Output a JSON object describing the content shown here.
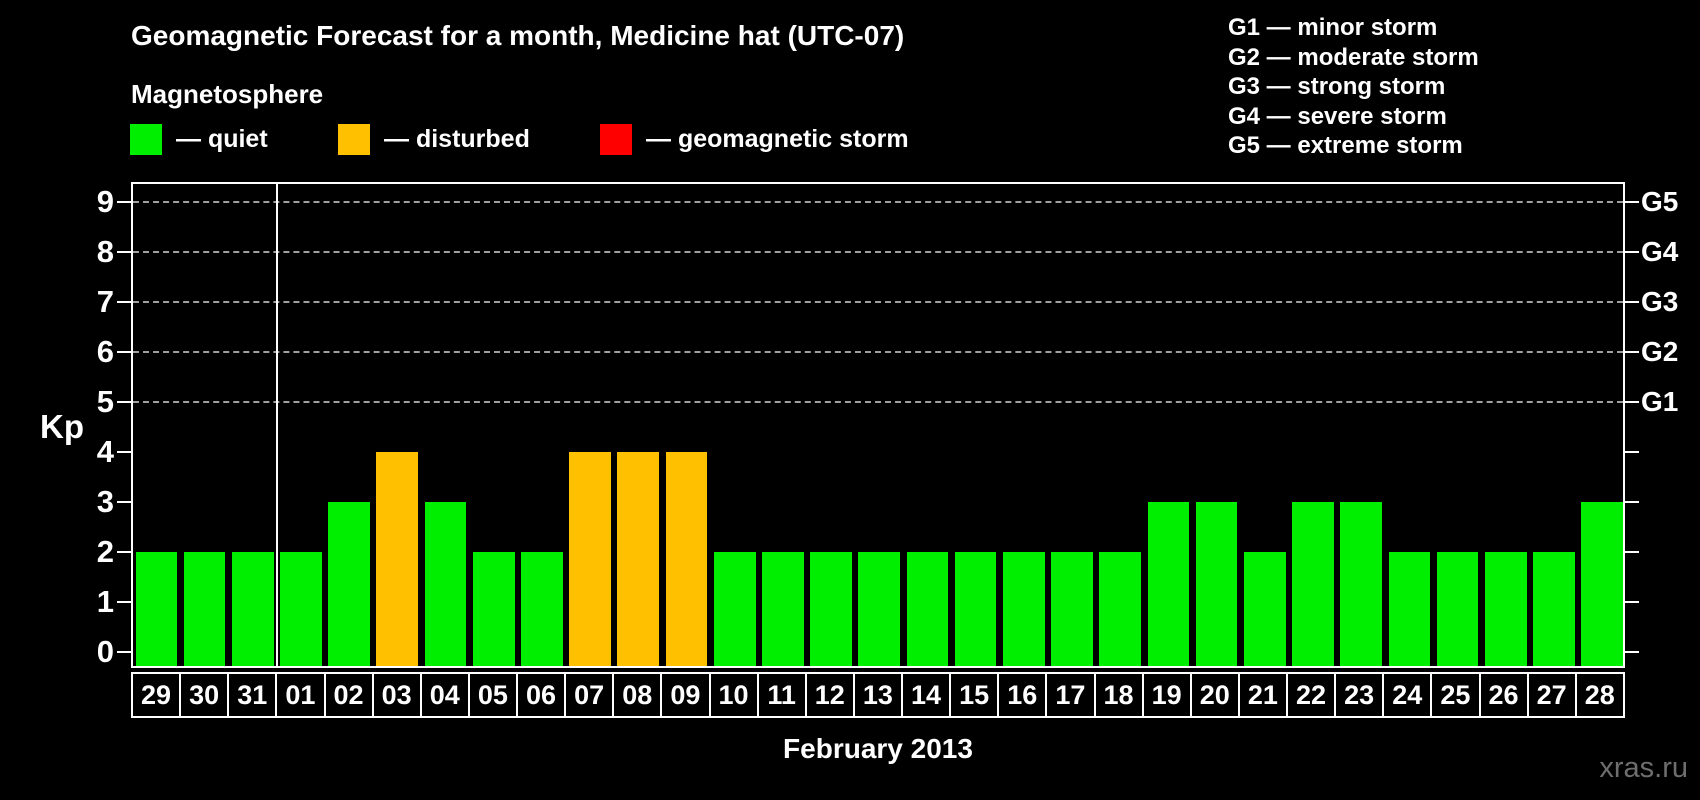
{
  "title": "Geomagnetic Forecast for a month, Medicine hat (UTC-07)",
  "subtitle": "Magnetosphere",
  "watermark": "xras.ru",
  "colors": {
    "background": "#000000",
    "quiet": "#00ee00",
    "disturbed": "#ffc000",
    "storm": "#ff0000",
    "grid": "#a0a0a0",
    "frame": "#ffffff",
    "watermark": "#6e6e6e"
  },
  "legend": {
    "items": [
      {
        "status": "quiet",
        "label": "— quiet"
      },
      {
        "status": "disturbed",
        "label": "— disturbed"
      },
      {
        "status": "storm",
        "label": "— geomagnetic storm"
      }
    ]
  },
  "storm_scale_legend": [
    "G1 — minor storm",
    "G2 — moderate storm",
    "G3 — strong storm",
    "G4 — severe storm",
    "G5 — extreme storm"
  ],
  "chart_data": {
    "type": "bar",
    "title": "Geomagnetic Forecast for a month, Medicine hat (UTC-07)",
    "xlabel": "February 2013",
    "ylabel": "Kp",
    "ylim": [
      0,
      9
    ],
    "yticks": [
      0,
      1,
      2,
      3,
      4,
      5,
      6,
      7,
      8,
      9
    ],
    "gridline_kp": [
      5,
      6,
      7,
      8,
      9
    ],
    "right_axis": [
      {
        "label": "G1",
        "kp": 5
      },
      {
        "label": "G2",
        "kp": 6
      },
      {
        "label": "G3",
        "kp": 7
      },
      {
        "label": "G4",
        "kp": 8
      },
      {
        "label": "G5",
        "kp": 9
      }
    ],
    "categories": [
      "29",
      "30",
      "31",
      "01",
      "02",
      "03",
      "04",
      "05",
      "06",
      "07",
      "08",
      "09",
      "10",
      "11",
      "12",
      "13",
      "14",
      "15",
      "16",
      "17",
      "18",
      "19",
      "20",
      "21",
      "22",
      "23",
      "24",
      "25",
      "26",
      "27",
      "28"
    ],
    "values": [
      2,
      2,
      2,
      2,
      3,
      4,
      3,
      2,
      2,
      4,
      4,
      4,
      2,
      2,
      2,
      2,
      2,
      2,
      2,
      2,
      2,
      3,
      3,
      2,
      3,
      3,
      2,
      2,
      2,
      2,
      3
    ],
    "statuses": [
      "quiet",
      "quiet",
      "quiet",
      "quiet",
      "quiet",
      "disturbed",
      "quiet",
      "quiet",
      "quiet",
      "disturbed",
      "disturbed",
      "disturbed",
      "quiet",
      "quiet",
      "quiet",
      "quiet",
      "quiet",
      "quiet",
      "quiet",
      "quiet",
      "quiet",
      "quiet",
      "quiet",
      "quiet",
      "quiet",
      "quiet",
      "quiet",
      "quiet",
      "quiet",
      "quiet",
      "quiet"
    ],
    "month_boundary_index": 3,
    "grid": true,
    "legend_position": "top-left"
  }
}
